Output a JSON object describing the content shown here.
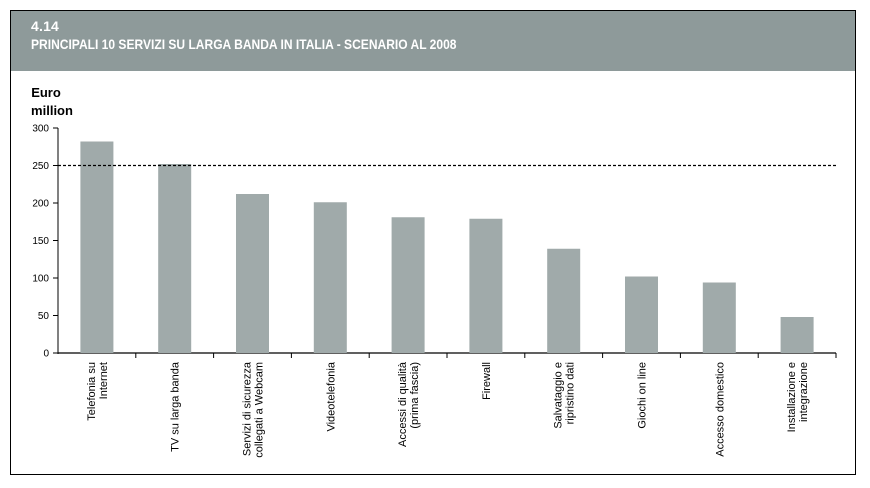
{
  "header": {
    "number": "4.14",
    "title": "PRINCIPALI 10 SERVIZI SU LARGA BANDA IN ITALIA - SCENARIO AL 2008"
  },
  "chart_data": {
    "type": "bar",
    "ylabel": [
      "Euro",
      "million"
    ],
    "ylim": [
      0,
      300
    ],
    "yticks": [
      0,
      50,
      100,
      150,
      200,
      250,
      300
    ],
    "reference_line": 250,
    "bar_color": "#a0aaaa",
    "categories": [
      [
        "Telefonia su",
        "Internet"
      ],
      [
        "TV su larga banda"
      ],
      [
        "Servizi di sicurezza",
        "collegati a Webcam"
      ],
      [
        "Videotelefonia"
      ],
      [
        "Accessi di qualità",
        "(prima fascia)"
      ],
      [
        "Firewall"
      ],
      [
        "Salvataggio e",
        "ripristino dati"
      ],
      [
        "Giochi on line"
      ],
      [
        "Accesso domestico"
      ],
      [
        "Installazione e",
        "integrazione"
      ]
    ],
    "values": [
      282,
      252,
      212,
      201,
      181,
      179,
      139,
      102,
      94,
      48
    ]
  }
}
